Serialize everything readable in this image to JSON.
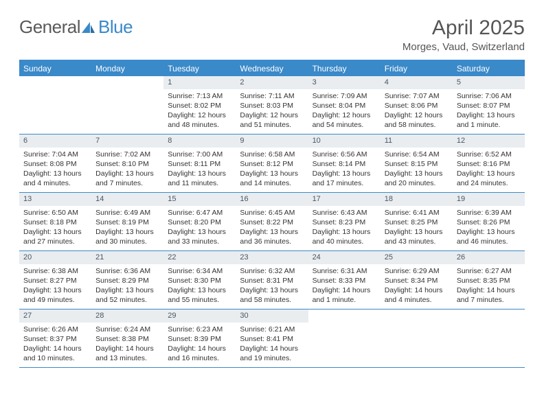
{
  "brand": {
    "part1": "General",
    "part2": "Blue"
  },
  "title": "April 2025",
  "location": "Morges, Vaud, Switzerland",
  "colors": {
    "accent": "#3a89c9",
    "header_bg": "#3a89c9",
    "daynum_bg": "#e9edf0",
    "text": "#333333",
    "title_text": "#555555"
  },
  "weekdays": [
    "Sunday",
    "Monday",
    "Tuesday",
    "Wednesday",
    "Thursday",
    "Friday",
    "Saturday"
  ],
  "weeks": [
    [
      {
        "n": "",
        "sr": "",
        "ss": "",
        "dl": ""
      },
      {
        "n": "",
        "sr": "",
        "ss": "",
        "dl": ""
      },
      {
        "n": "1",
        "sr": "Sunrise: 7:13 AM",
        "ss": "Sunset: 8:02 PM",
        "dl": "Daylight: 12 hours and 48 minutes."
      },
      {
        "n": "2",
        "sr": "Sunrise: 7:11 AM",
        "ss": "Sunset: 8:03 PM",
        "dl": "Daylight: 12 hours and 51 minutes."
      },
      {
        "n": "3",
        "sr": "Sunrise: 7:09 AM",
        "ss": "Sunset: 8:04 PM",
        "dl": "Daylight: 12 hours and 54 minutes."
      },
      {
        "n": "4",
        "sr": "Sunrise: 7:07 AM",
        "ss": "Sunset: 8:06 PM",
        "dl": "Daylight: 12 hours and 58 minutes."
      },
      {
        "n": "5",
        "sr": "Sunrise: 7:06 AM",
        "ss": "Sunset: 8:07 PM",
        "dl": "Daylight: 13 hours and 1 minute."
      }
    ],
    [
      {
        "n": "6",
        "sr": "Sunrise: 7:04 AM",
        "ss": "Sunset: 8:08 PM",
        "dl": "Daylight: 13 hours and 4 minutes."
      },
      {
        "n": "7",
        "sr": "Sunrise: 7:02 AM",
        "ss": "Sunset: 8:10 PM",
        "dl": "Daylight: 13 hours and 7 minutes."
      },
      {
        "n": "8",
        "sr": "Sunrise: 7:00 AM",
        "ss": "Sunset: 8:11 PM",
        "dl": "Daylight: 13 hours and 11 minutes."
      },
      {
        "n": "9",
        "sr": "Sunrise: 6:58 AM",
        "ss": "Sunset: 8:12 PM",
        "dl": "Daylight: 13 hours and 14 minutes."
      },
      {
        "n": "10",
        "sr": "Sunrise: 6:56 AM",
        "ss": "Sunset: 8:14 PM",
        "dl": "Daylight: 13 hours and 17 minutes."
      },
      {
        "n": "11",
        "sr": "Sunrise: 6:54 AM",
        "ss": "Sunset: 8:15 PM",
        "dl": "Daylight: 13 hours and 20 minutes."
      },
      {
        "n": "12",
        "sr": "Sunrise: 6:52 AM",
        "ss": "Sunset: 8:16 PM",
        "dl": "Daylight: 13 hours and 24 minutes."
      }
    ],
    [
      {
        "n": "13",
        "sr": "Sunrise: 6:50 AM",
        "ss": "Sunset: 8:18 PM",
        "dl": "Daylight: 13 hours and 27 minutes."
      },
      {
        "n": "14",
        "sr": "Sunrise: 6:49 AM",
        "ss": "Sunset: 8:19 PM",
        "dl": "Daylight: 13 hours and 30 minutes."
      },
      {
        "n": "15",
        "sr": "Sunrise: 6:47 AM",
        "ss": "Sunset: 8:20 PM",
        "dl": "Daylight: 13 hours and 33 minutes."
      },
      {
        "n": "16",
        "sr": "Sunrise: 6:45 AM",
        "ss": "Sunset: 8:22 PM",
        "dl": "Daylight: 13 hours and 36 minutes."
      },
      {
        "n": "17",
        "sr": "Sunrise: 6:43 AM",
        "ss": "Sunset: 8:23 PM",
        "dl": "Daylight: 13 hours and 40 minutes."
      },
      {
        "n": "18",
        "sr": "Sunrise: 6:41 AM",
        "ss": "Sunset: 8:25 PM",
        "dl": "Daylight: 13 hours and 43 minutes."
      },
      {
        "n": "19",
        "sr": "Sunrise: 6:39 AM",
        "ss": "Sunset: 8:26 PM",
        "dl": "Daylight: 13 hours and 46 minutes."
      }
    ],
    [
      {
        "n": "20",
        "sr": "Sunrise: 6:38 AM",
        "ss": "Sunset: 8:27 PM",
        "dl": "Daylight: 13 hours and 49 minutes."
      },
      {
        "n": "21",
        "sr": "Sunrise: 6:36 AM",
        "ss": "Sunset: 8:29 PM",
        "dl": "Daylight: 13 hours and 52 minutes."
      },
      {
        "n": "22",
        "sr": "Sunrise: 6:34 AM",
        "ss": "Sunset: 8:30 PM",
        "dl": "Daylight: 13 hours and 55 minutes."
      },
      {
        "n": "23",
        "sr": "Sunrise: 6:32 AM",
        "ss": "Sunset: 8:31 PM",
        "dl": "Daylight: 13 hours and 58 minutes."
      },
      {
        "n": "24",
        "sr": "Sunrise: 6:31 AM",
        "ss": "Sunset: 8:33 PM",
        "dl": "Daylight: 14 hours and 1 minute."
      },
      {
        "n": "25",
        "sr": "Sunrise: 6:29 AM",
        "ss": "Sunset: 8:34 PM",
        "dl": "Daylight: 14 hours and 4 minutes."
      },
      {
        "n": "26",
        "sr": "Sunrise: 6:27 AM",
        "ss": "Sunset: 8:35 PM",
        "dl": "Daylight: 14 hours and 7 minutes."
      }
    ],
    [
      {
        "n": "27",
        "sr": "Sunrise: 6:26 AM",
        "ss": "Sunset: 8:37 PM",
        "dl": "Daylight: 14 hours and 10 minutes."
      },
      {
        "n": "28",
        "sr": "Sunrise: 6:24 AM",
        "ss": "Sunset: 8:38 PM",
        "dl": "Daylight: 14 hours and 13 minutes."
      },
      {
        "n": "29",
        "sr": "Sunrise: 6:23 AM",
        "ss": "Sunset: 8:39 PM",
        "dl": "Daylight: 14 hours and 16 minutes."
      },
      {
        "n": "30",
        "sr": "Sunrise: 6:21 AM",
        "ss": "Sunset: 8:41 PM",
        "dl": "Daylight: 14 hours and 19 minutes."
      },
      {
        "n": "",
        "sr": "",
        "ss": "",
        "dl": ""
      },
      {
        "n": "",
        "sr": "",
        "ss": "",
        "dl": ""
      },
      {
        "n": "",
        "sr": "",
        "ss": "",
        "dl": ""
      }
    ]
  ]
}
